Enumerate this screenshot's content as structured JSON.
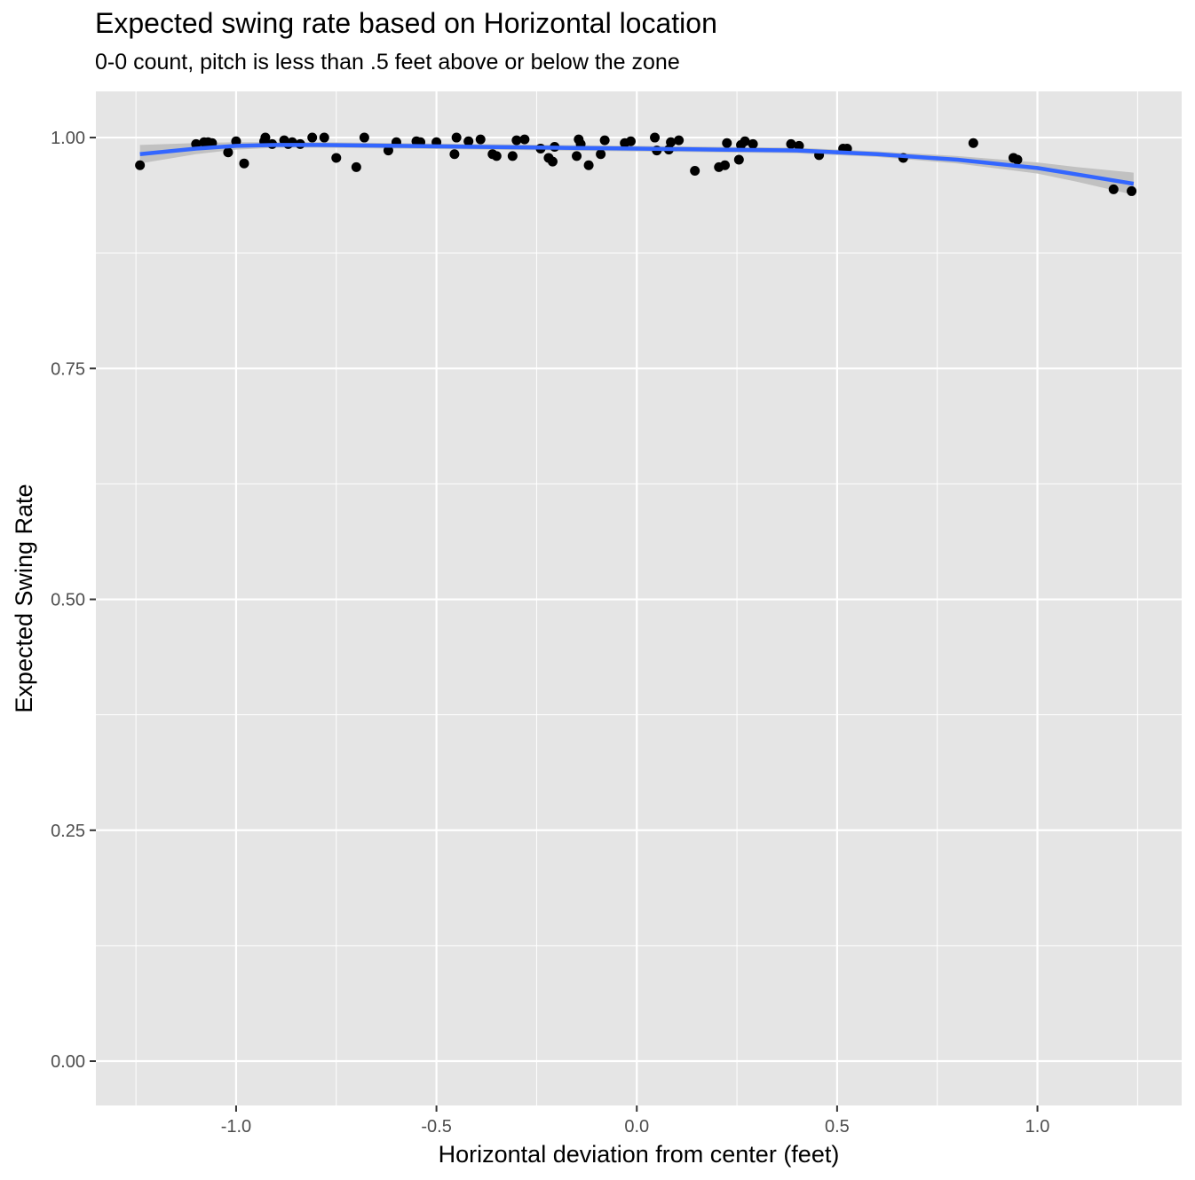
{
  "chart_data": {
    "type": "scatter",
    "title": "Expected swing rate based on Horizontal location",
    "subtitle": "0-0 count, pitch is less than .5 feet above or below the zone",
    "xlabel": "Horizontal deviation from center (feet)",
    "ylabel": "Expected Swing Rate",
    "xlim": [
      -1.35,
      1.36
    ],
    "ylim": [
      -0.048,
      1.05
    ],
    "x_ticks": [
      -1.0,
      -0.5,
      0.0,
      0.5,
      1.0
    ],
    "x_tick_labels": [
      "-1.0",
      "-0.5",
      "0.0",
      "0.5",
      "1.0"
    ],
    "y_ticks": [
      0.0,
      0.25,
      0.5,
      0.75,
      1.0
    ],
    "y_tick_labels": [
      "0.00",
      "0.25",
      "0.50",
      "0.75",
      "1.00"
    ],
    "grid": true,
    "colors": {
      "panel_background": "#e5e5e5",
      "grid_line": "#ffffff",
      "point": "#000000",
      "smooth_line": "#3366ff",
      "confidence_band": "#bdbdbd",
      "tick_text": "#4d4d4d"
    },
    "points": [
      {
        "x": -1.24,
        "y": 0.97
      },
      {
        "x": -1.1,
        "y": 0.993
      },
      {
        "x": -1.08,
        "y": 0.995
      },
      {
        "x": -1.07,
        "y": 0.995
      },
      {
        "x": -1.06,
        "y": 0.994
      },
      {
        "x": -1.02,
        "y": 0.984
      },
      {
        "x": -1.0,
        "y": 0.996
      },
      {
        "x": -0.98,
        "y": 0.972
      },
      {
        "x": -0.93,
        "y": 0.996
      },
      {
        "x": -0.927,
        "y": 1.0
      },
      {
        "x": -0.91,
        "y": 0.993
      },
      {
        "x": -0.88,
        "y": 0.997
      },
      {
        "x": -0.87,
        "y": 0.993
      },
      {
        "x": -0.86,
        "y": 0.995
      },
      {
        "x": -0.84,
        "y": 0.993
      },
      {
        "x": -0.81,
        "y": 1.0
      },
      {
        "x": -0.78,
        "y": 1.0
      },
      {
        "x": -0.75,
        "y": 0.978
      },
      {
        "x": -0.7,
        "y": 0.968
      },
      {
        "x": -0.68,
        "y": 1.0
      },
      {
        "x": -0.62,
        "y": 0.986
      },
      {
        "x": -0.6,
        "y": 0.995
      },
      {
        "x": -0.55,
        "y": 0.996
      },
      {
        "x": -0.54,
        "y": 0.995
      },
      {
        "x": -0.5,
        "y": 0.995
      },
      {
        "x": -0.455,
        "y": 0.982
      },
      {
        "x": -0.45,
        "y": 1.0
      },
      {
        "x": -0.42,
        "y": 0.996
      },
      {
        "x": -0.39,
        "y": 0.998
      },
      {
        "x": -0.36,
        "y": 0.982
      },
      {
        "x": -0.35,
        "y": 0.98
      },
      {
        "x": -0.31,
        "y": 0.98
      },
      {
        "x": -0.3,
        "y": 0.997
      },
      {
        "x": -0.28,
        "y": 0.998
      },
      {
        "x": -0.24,
        "y": 0.988
      },
      {
        "x": -0.22,
        "y": 0.978
      },
      {
        "x": -0.21,
        "y": 0.974
      },
      {
        "x": -0.205,
        "y": 0.99
      },
      {
        "x": -0.15,
        "y": 0.98
      },
      {
        "x": -0.145,
        "y": 0.998
      },
      {
        "x": -0.14,
        "y": 0.993
      },
      {
        "x": -0.12,
        "y": 0.97
      },
      {
        "x": -0.09,
        "y": 0.982
      },
      {
        "x": -0.08,
        "y": 0.997
      },
      {
        "x": -0.03,
        "y": 0.994
      },
      {
        "x": -0.015,
        "y": 0.996
      },
      {
        "x": 0.045,
        "y": 1.0
      },
      {
        "x": 0.05,
        "y": 0.986
      },
      {
        "x": 0.08,
        "y": 0.987
      },
      {
        "x": 0.085,
        "y": 0.995
      },
      {
        "x": 0.105,
        "y": 0.997
      },
      {
        "x": 0.145,
        "y": 0.964
      },
      {
        "x": 0.205,
        "y": 0.968
      },
      {
        "x": 0.22,
        "y": 0.97
      },
      {
        "x": 0.225,
        "y": 0.994
      },
      {
        "x": 0.255,
        "y": 0.976
      },
      {
        "x": 0.26,
        "y": 0.992
      },
      {
        "x": 0.27,
        "y": 0.996
      },
      {
        "x": 0.29,
        "y": 0.993
      },
      {
        "x": 0.385,
        "y": 0.993
      },
      {
        "x": 0.405,
        "y": 0.991
      },
      {
        "x": 0.455,
        "y": 0.981
      },
      {
        "x": 0.515,
        "y": 0.988
      },
      {
        "x": 0.525,
        "y": 0.988
      },
      {
        "x": 0.665,
        "y": 0.978
      },
      {
        "x": 0.84,
        "y": 0.994
      },
      {
        "x": 0.94,
        "y": 0.978
      },
      {
        "x": 0.95,
        "y": 0.976
      },
      {
        "x": 1.19,
        "y": 0.944
      },
      {
        "x": 1.235,
        "y": 0.942
      }
    ],
    "smooth": {
      "x": [
        -1.24,
        -1.1,
        -1.0,
        -0.9,
        -0.8,
        -0.6,
        -0.4,
        -0.2,
        0.0,
        0.2,
        0.4,
        0.6,
        0.8,
        1.0,
        1.1,
        1.24
      ],
      "y": [
        0.982,
        0.988,
        0.991,
        0.992,
        0.992,
        0.991,
        0.99,
        0.989,
        0.988,
        0.987,
        0.986,
        0.982,
        0.976,
        0.967,
        0.96,
        0.95
      ],
      "lower": [
        0.972,
        0.982,
        0.987,
        0.989,
        0.989,
        0.988,
        0.987,
        0.986,
        0.985,
        0.984,
        0.983,
        0.979,
        0.972,
        0.961,
        0.952,
        0.938
      ],
      "upper": [
        0.992,
        0.994,
        0.995,
        0.995,
        0.995,
        0.994,
        0.993,
        0.992,
        0.991,
        0.99,
        0.989,
        0.985,
        0.98,
        0.973,
        0.968,
        0.962
      ]
    }
  }
}
